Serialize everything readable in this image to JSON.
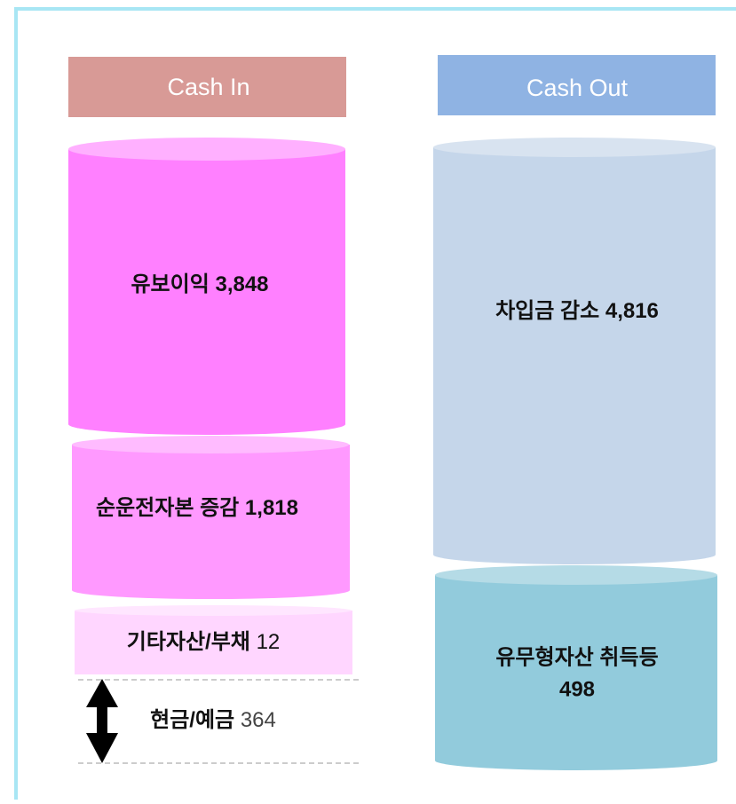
{
  "columns": [
    {
      "header": "Cash In",
      "items": [
        {
          "label": "유보이익",
          "value": "3,848"
        },
        {
          "label": "순운전자본 증감",
          "value": "1,818"
        },
        {
          "label": "기타자산/부채",
          "value": "12"
        }
      ]
    },
    {
      "header": "Cash Out",
      "items": [
        {
          "label": "차입금 감소",
          "value": "4,816"
        },
        {
          "label": "유무형자산 취득등",
          "value": "498"
        }
      ]
    }
  ],
  "cash": {
    "label": "현금/예금",
    "value": "364"
  }
}
